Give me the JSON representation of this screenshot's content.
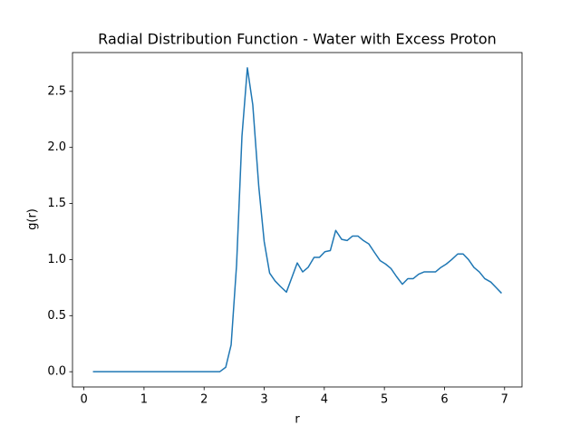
{
  "chart_data": {
    "type": "line",
    "title": "Radial Distribution Function - Water with Excess Proton",
    "x_label": "r",
    "y_label": "g(r)",
    "x": [
      0.15,
      0.24,
      0.33,
      0.43,
      0.52,
      0.61,
      0.7,
      0.79,
      0.89,
      0.98,
      1.07,
      1.16,
      1.25,
      1.34,
      1.44,
      1.53,
      1.62,
      1.71,
      1.8,
      1.9,
      1.99,
      2.08,
      2.17,
      2.26,
      2.36,
      2.45,
      2.54,
      2.63,
      2.72,
      2.81,
      2.91,
      3.0,
      3.09,
      3.18,
      3.27,
      3.37,
      3.46,
      3.55,
      3.64,
      3.73,
      3.83,
      3.92,
      4.01,
      4.1,
      4.19,
      4.29,
      4.38,
      4.47,
      4.56,
      4.65,
      4.74,
      4.84,
      4.93,
      5.02,
      5.11,
      5.2,
      5.3,
      5.39,
      5.48,
      5.57,
      5.66,
      5.76,
      5.85,
      5.94,
      6.03,
      6.12,
      6.22,
      6.31,
      6.4,
      6.49,
      6.58,
      6.67,
      6.77,
      6.86,
      6.95
    ],
    "series": [
      {
        "color": "#1f77b4",
        "values": [
          0,
          0,
          0,
          0,
          0,
          0,
          0,
          0,
          0,
          0,
          0,
          0,
          0,
          0,
          0,
          0,
          0,
          0,
          0,
          0,
          0,
          0,
          0,
          0,
          0.04,
          0.24,
          0.95,
          2.1,
          2.71,
          2.38,
          1.65,
          1.16,
          0.88,
          0.81,
          0.76,
          0.71,
          0.84,
          0.97,
          0.89,
          0.93,
          1.02,
          1.02,
          1.07,
          1.08,
          1.26,
          1.18,
          1.17,
          1.21,
          1.21,
          1.17,
          1.14,
          1.06,
          0.99,
          0.96,
          0.92,
          0.85,
          0.78,
          0.83,
          0.83,
          0.87,
          0.89,
          0.89,
          0.89,
          0.93,
          0.96,
          1.0,
          1.05,
          1.05,
          1.0,
          0.93,
          0.89,
          0.83,
          0.8,
          0.75,
          0.7
        ]
      }
    ],
    "xlim": [
      -0.19,
      7.29
    ],
    "ylim": [
      -0.136,
      2.846
    ],
    "xticks": [
      0,
      1,
      2,
      3,
      4,
      5,
      6,
      7
    ],
    "yticks": [
      {
        "value": 0,
        "label": "0.0"
      },
      0.5,
      {
        "value": 1,
        "label": "1.0"
      },
      1.5,
      {
        "value": 2,
        "label": "2.0"
      },
      2.5
    ]
  }
}
